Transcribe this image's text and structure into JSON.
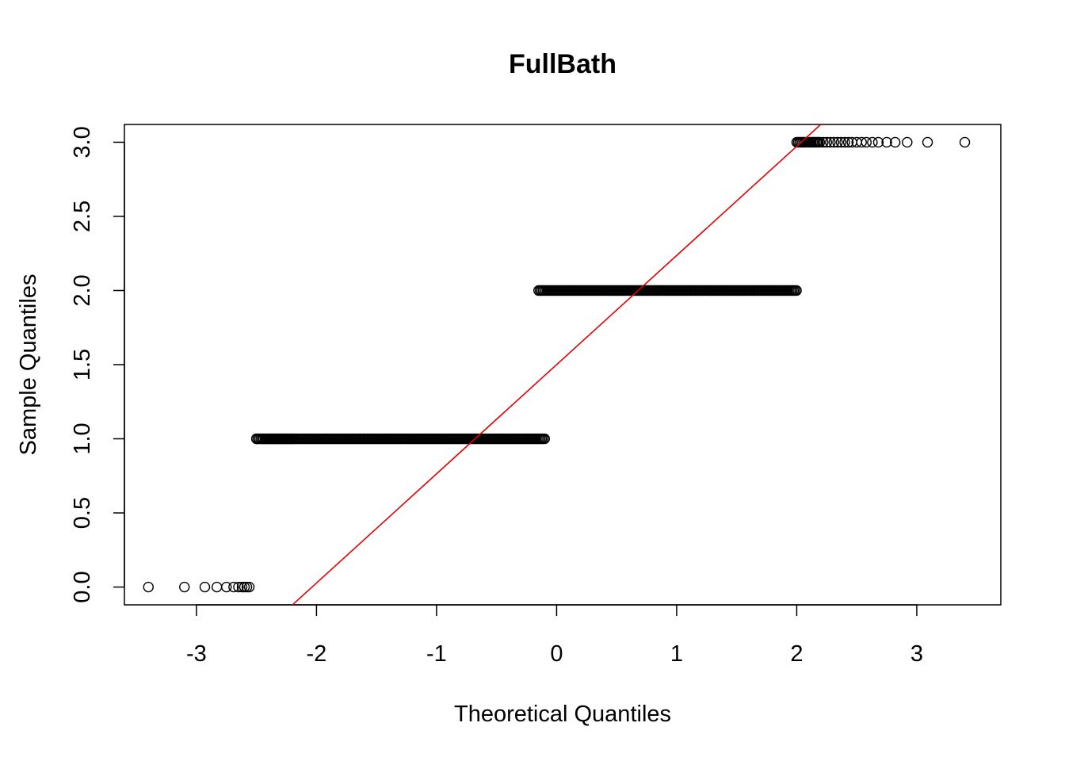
{
  "chart_data": {
    "type": "scatter",
    "title": "FullBath",
    "xlabel": "Theoretical Quantiles",
    "ylabel": "Sample Quantiles",
    "xlim": [
      -3.6,
      3.7
    ],
    "ylim": [
      -0.12,
      3.12
    ],
    "x_ticks": [
      -3,
      -2,
      -1,
      0,
      1,
      2,
      3
    ],
    "x_tick_labels": [
      "-3",
      "-2",
      "-1",
      "0",
      "1",
      "2",
      "3"
    ],
    "y_ticks": [
      0.0,
      0.5,
      1.0,
      1.5,
      2.0,
      2.5,
      3.0
    ],
    "y_tick_labels": [
      "0.0",
      "0.5",
      "1.0",
      "1.5",
      "2.0",
      "2.5",
      "3.0"
    ],
    "grid": false,
    "colors": {
      "points": "#000000",
      "reference_line": "#e00000"
    },
    "points": [
      {
        "y": 0,
        "x": [
          -3.4,
          -3.1,
          -2.93,
          -2.83,
          -2.75,
          -2.69,
          -2.65,
          -2.62,
          -2.6,
          -2.58,
          -2.56
        ]
      },
      {
        "y": 1,
        "x_start": -2.5,
        "x_end": -0.1,
        "sparse_x": [
          -2.5,
          -2.45,
          -2.42,
          -2.4,
          -2.38,
          -2.36,
          -2.34,
          -2.32,
          -2.3,
          -2.28,
          -2.26,
          -2.24,
          -2.22,
          -2.2
        ]
      },
      {
        "y": 2,
        "x_start": -0.15,
        "x_end": 2.0
      },
      {
        "y": 3,
        "x_start": 2.0,
        "x_end": 2.2,
        "sparse_x": [
          2.22,
          2.25,
          2.28,
          2.31,
          2.34,
          2.37,
          2.4,
          2.43,
          2.46,
          2.5,
          2.54,
          2.58,
          2.63,
          2.68,
          2.75,
          2.82,
          2.92,
          3.09,
          3.4
        ]
      }
    ],
    "reference_line": {
      "x1": -2.2,
      "y1": -0.12,
      "x2": 2.2,
      "y2": 3.12
    }
  }
}
